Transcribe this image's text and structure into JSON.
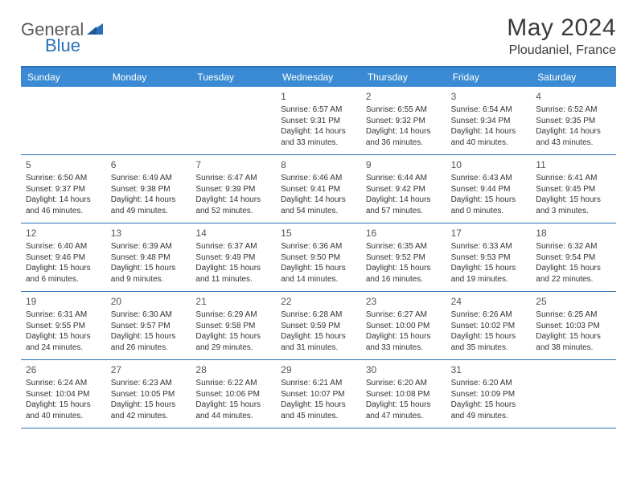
{
  "brand": {
    "part1": "General",
    "part2": "Blue"
  },
  "title": "May 2024",
  "location": "Ploudaniel, France",
  "colors": {
    "header_bg": "#3b8bd4",
    "border": "#2970b8",
    "logo_gray": "#5a5a5a",
    "logo_blue": "#2970b8",
    "text": "#333333"
  },
  "day_names": [
    "Sunday",
    "Monday",
    "Tuesday",
    "Wednesday",
    "Thursday",
    "Friday",
    "Saturday"
  ],
  "weeks": [
    [
      null,
      null,
      null,
      {
        "n": "1",
        "sr": "Sunrise: 6:57 AM",
        "ss": "Sunset: 9:31 PM",
        "d1": "Daylight: 14 hours",
        "d2": "and 33 minutes."
      },
      {
        "n": "2",
        "sr": "Sunrise: 6:55 AM",
        "ss": "Sunset: 9:32 PM",
        "d1": "Daylight: 14 hours",
        "d2": "and 36 minutes."
      },
      {
        "n": "3",
        "sr": "Sunrise: 6:54 AM",
        "ss": "Sunset: 9:34 PM",
        "d1": "Daylight: 14 hours",
        "d2": "and 40 minutes."
      },
      {
        "n": "4",
        "sr": "Sunrise: 6:52 AM",
        "ss": "Sunset: 9:35 PM",
        "d1": "Daylight: 14 hours",
        "d2": "and 43 minutes."
      }
    ],
    [
      {
        "n": "5",
        "sr": "Sunrise: 6:50 AM",
        "ss": "Sunset: 9:37 PM",
        "d1": "Daylight: 14 hours",
        "d2": "and 46 minutes."
      },
      {
        "n": "6",
        "sr": "Sunrise: 6:49 AM",
        "ss": "Sunset: 9:38 PM",
        "d1": "Daylight: 14 hours",
        "d2": "and 49 minutes."
      },
      {
        "n": "7",
        "sr": "Sunrise: 6:47 AM",
        "ss": "Sunset: 9:39 PM",
        "d1": "Daylight: 14 hours",
        "d2": "and 52 minutes."
      },
      {
        "n": "8",
        "sr": "Sunrise: 6:46 AM",
        "ss": "Sunset: 9:41 PM",
        "d1": "Daylight: 14 hours",
        "d2": "and 54 minutes."
      },
      {
        "n": "9",
        "sr": "Sunrise: 6:44 AM",
        "ss": "Sunset: 9:42 PM",
        "d1": "Daylight: 14 hours",
        "d2": "and 57 minutes."
      },
      {
        "n": "10",
        "sr": "Sunrise: 6:43 AM",
        "ss": "Sunset: 9:44 PM",
        "d1": "Daylight: 15 hours",
        "d2": "and 0 minutes."
      },
      {
        "n": "11",
        "sr": "Sunrise: 6:41 AM",
        "ss": "Sunset: 9:45 PM",
        "d1": "Daylight: 15 hours",
        "d2": "and 3 minutes."
      }
    ],
    [
      {
        "n": "12",
        "sr": "Sunrise: 6:40 AM",
        "ss": "Sunset: 9:46 PM",
        "d1": "Daylight: 15 hours",
        "d2": "and 6 minutes."
      },
      {
        "n": "13",
        "sr": "Sunrise: 6:39 AM",
        "ss": "Sunset: 9:48 PM",
        "d1": "Daylight: 15 hours",
        "d2": "and 9 minutes."
      },
      {
        "n": "14",
        "sr": "Sunrise: 6:37 AM",
        "ss": "Sunset: 9:49 PM",
        "d1": "Daylight: 15 hours",
        "d2": "and 11 minutes."
      },
      {
        "n": "15",
        "sr": "Sunrise: 6:36 AM",
        "ss": "Sunset: 9:50 PM",
        "d1": "Daylight: 15 hours",
        "d2": "and 14 minutes."
      },
      {
        "n": "16",
        "sr": "Sunrise: 6:35 AM",
        "ss": "Sunset: 9:52 PM",
        "d1": "Daylight: 15 hours",
        "d2": "and 16 minutes."
      },
      {
        "n": "17",
        "sr": "Sunrise: 6:33 AM",
        "ss": "Sunset: 9:53 PM",
        "d1": "Daylight: 15 hours",
        "d2": "and 19 minutes."
      },
      {
        "n": "18",
        "sr": "Sunrise: 6:32 AM",
        "ss": "Sunset: 9:54 PM",
        "d1": "Daylight: 15 hours",
        "d2": "and 22 minutes."
      }
    ],
    [
      {
        "n": "19",
        "sr": "Sunrise: 6:31 AM",
        "ss": "Sunset: 9:55 PM",
        "d1": "Daylight: 15 hours",
        "d2": "and 24 minutes."
      },
      {
        "n": "20",
        "sr": "Sunrise: 6:30 AM",
        "ss": "Sunset: 9:57 PM",
        "d1": "Daylight: 15 hours",
        "d2": "and 26 minutes."
      },
      {
        "n": "21",
        "sr": "Sunrise: 6:29 AM",
        "ss": "Sunset: 9:58 PM",
        "d1": "Daylight: 15 hours",
        "d2": "and 29 minutes."
      },
      {
        "n": "22",
        "sr": "Sunrise: 6:28 AM",
        "ss": "Sunset: 9:59 PM",
        "d1": "Daylight: 15 hours",
        "d2": "and 31 minutes."
      },
      {
        "n": "23",
        "sr": "Sunrise: 6:27 AM",
        "ss": "Sunset: 10:00 PM",
        "d1": "Daylight: 15 hours",
        "d2": "and 33 minutes."
      },
      {
        "n": "24",
        "sr": "Sunrise: 6:26 AM",
        "ss": "Sunset: 10:02 PM",
        "d1": "Daylight: 15 hours",
        "d2": "and 35 minutes."
      },
      {
        "n": "25",
        "sr": "Sunrise: 6:25 AM",
        "ss": "Sunset: 10:03 PM",
        "d1": "Daylight: 15 hours",
        "d2": "and 38 minutes."
      }
    ],
    [
      {
        "n": "26",
        "sr": "Sunrise: 6:24 AM",
        "ss": "Sunset: 10:04 PM",
        "d1": "Daylight: 15 hours",
        "d2": "and 40 minutes."
      },
      {
        "n": "27",
        "sr": "Sunrise: 6:23 AM",
        "ss": "Sunset: 10:05 PM",
        "d1": "Daylight: 15 hours",
        "d2": "and 42 minutes."
      },
      {
        "n": "28",
        "sr": "Sunrise: 6:22 AM",
        "ss": "Sunset: 10:06 PM",
        "d1": "Daylight: 15 hours",
        "d2": "and 44 minutes."
      },
      {
        "n": "29",
        "sr": "Sunrise: 6:21 AM",
        "ss": "Sunset: 10:07 PM",
        "d1": "Daylight: 15 hours",
        "d2": "and 45 minutes."
      },
      {
        "n": "30",
        "sr": "Sunrise: 6:20 AM",
        "ss": "Sunset: 10:08 PM",
        "d1": "Daylight: 15 hours",
        "d2": "and 47 minutes."
      },
      {
        "n": "31",
        "sr": "Sunrise: 6:20 AM",
        "ss": "Sunset: 10:09 PM",
        "d1": "Daylight: 15 hours",
        "d2": "and 49 minutes."
      },
      null
    ]
  ]
}
